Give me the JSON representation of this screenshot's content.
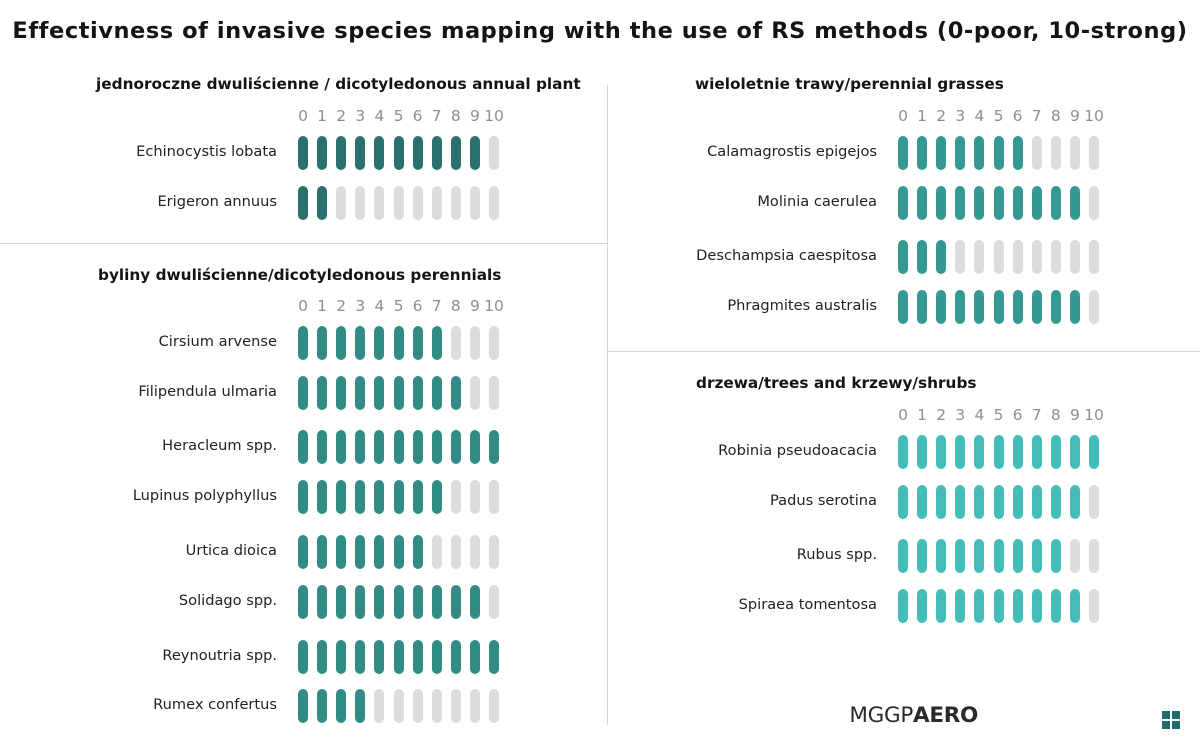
{
  "title": "Effectivness of invasive species mapping with the use of RS methods (0-poor, 10-strong)",
  "brand": {
    "light": "MGGP",
    "bold": "AERO"
  },
  "colors": {
    "off": "#dcdcdc",
    "dicot_annual": "#2a716d",
    "dicot_perennial": "#328c85",
    "grasses": "#359892",
    "trees": "#44bdb9"
  },
  "chart_data": [
    {
      "type": "table",
      "title": "jednoroczne dwuliścienne / dicotyledonous annual  plant",
      "scale": [
        0,
        10
      ],
      "tick_labels": [
        "0",
        "1",
        "2",
        "3",
        "4",
        "5",
        "6",
        "7",
        "8",
        "9",
        "10"
      ],
      "rows": [
        {
          "label": "Echinocystis lobata",
          "value": 9
        },
        {
          "label": "Erigeron annuus",
          "value": 1
        }
      ]
    },
    {
      "type": "table",
      "title": "byliny dwuliścienne/dicotyledonous perennials",
      "scale": [
        0,
        10
      ],
      "tick_labels": [
        "0",
        "1",
        "2",
        "3",
        "4",
        "5",
        "6",
        "7",
        "8",
        "9",
        "10"
      ],
      "rows": [
        {
          "label": "Cirsium arvense",
          "value": 7
        },
        {
          "label": "Filipendula ulmaria",
          "value": 8
        },
        {
          "label": "Heracleum spp.",
          "value": 10
        },
        {
          "label": "Lupinus polyphyllus",
          "value": 7
        },
        {
          "label": "Urtica dioica",
          "value": 6
        },
        {
          "label": "Solidago spp.",
          "value": 9
        },
        {
          "label": "Reynoutria spp.",
          "value": 10
        },
        {
          "label": "Rumex confertus",
          "value": 3
        }
      ]
    },
    {
      "type": "table",
      "title": "wieloletnie trawy/perennial grasses",
      "scale": [
        0,
        10
      ],
      "tick_labels": [
        "0",
        "1",
        "2",
        "3",
        "4",
        "5",
        "6",
        "7",
        "8",
        "9",
        "10"
      ],
      "rows": [
        {
          "label": "Calamagrostis epigejos",
          "value": 6
        },
        {
          "label": "Molinia caerulea",
          "value": 9
        },
        {
          "label": "Deschampsia caespitosa",
          "value": 2
        },
        {
          "label": "Phragmites australis",
          "value": 9
        }
      ]
    },
    {
      "type": "table",
      "title": "drzewa/trees and krzewy/shrubs",
      "scale": [
        0,
        10
      ],
      "tick_labels": [
        "0",
        "1",
        "2",
        "3",
        "4",
        "5",
        "6",
        "7",
        "8",
        "9",
        "10"
      ],
      "rows": [
        {
          "label": "Robinia pseudoacacia",
          "value": 10
        },
        {
          "label": "Padus serotina",
          "value": 9
        },
        {
          "label": "Rubus spp.",
          "value": 8
        },
        {
          "label": "Spiraea tomentosa",
          "value": 9
        }
      ]
    }
  ]
}
